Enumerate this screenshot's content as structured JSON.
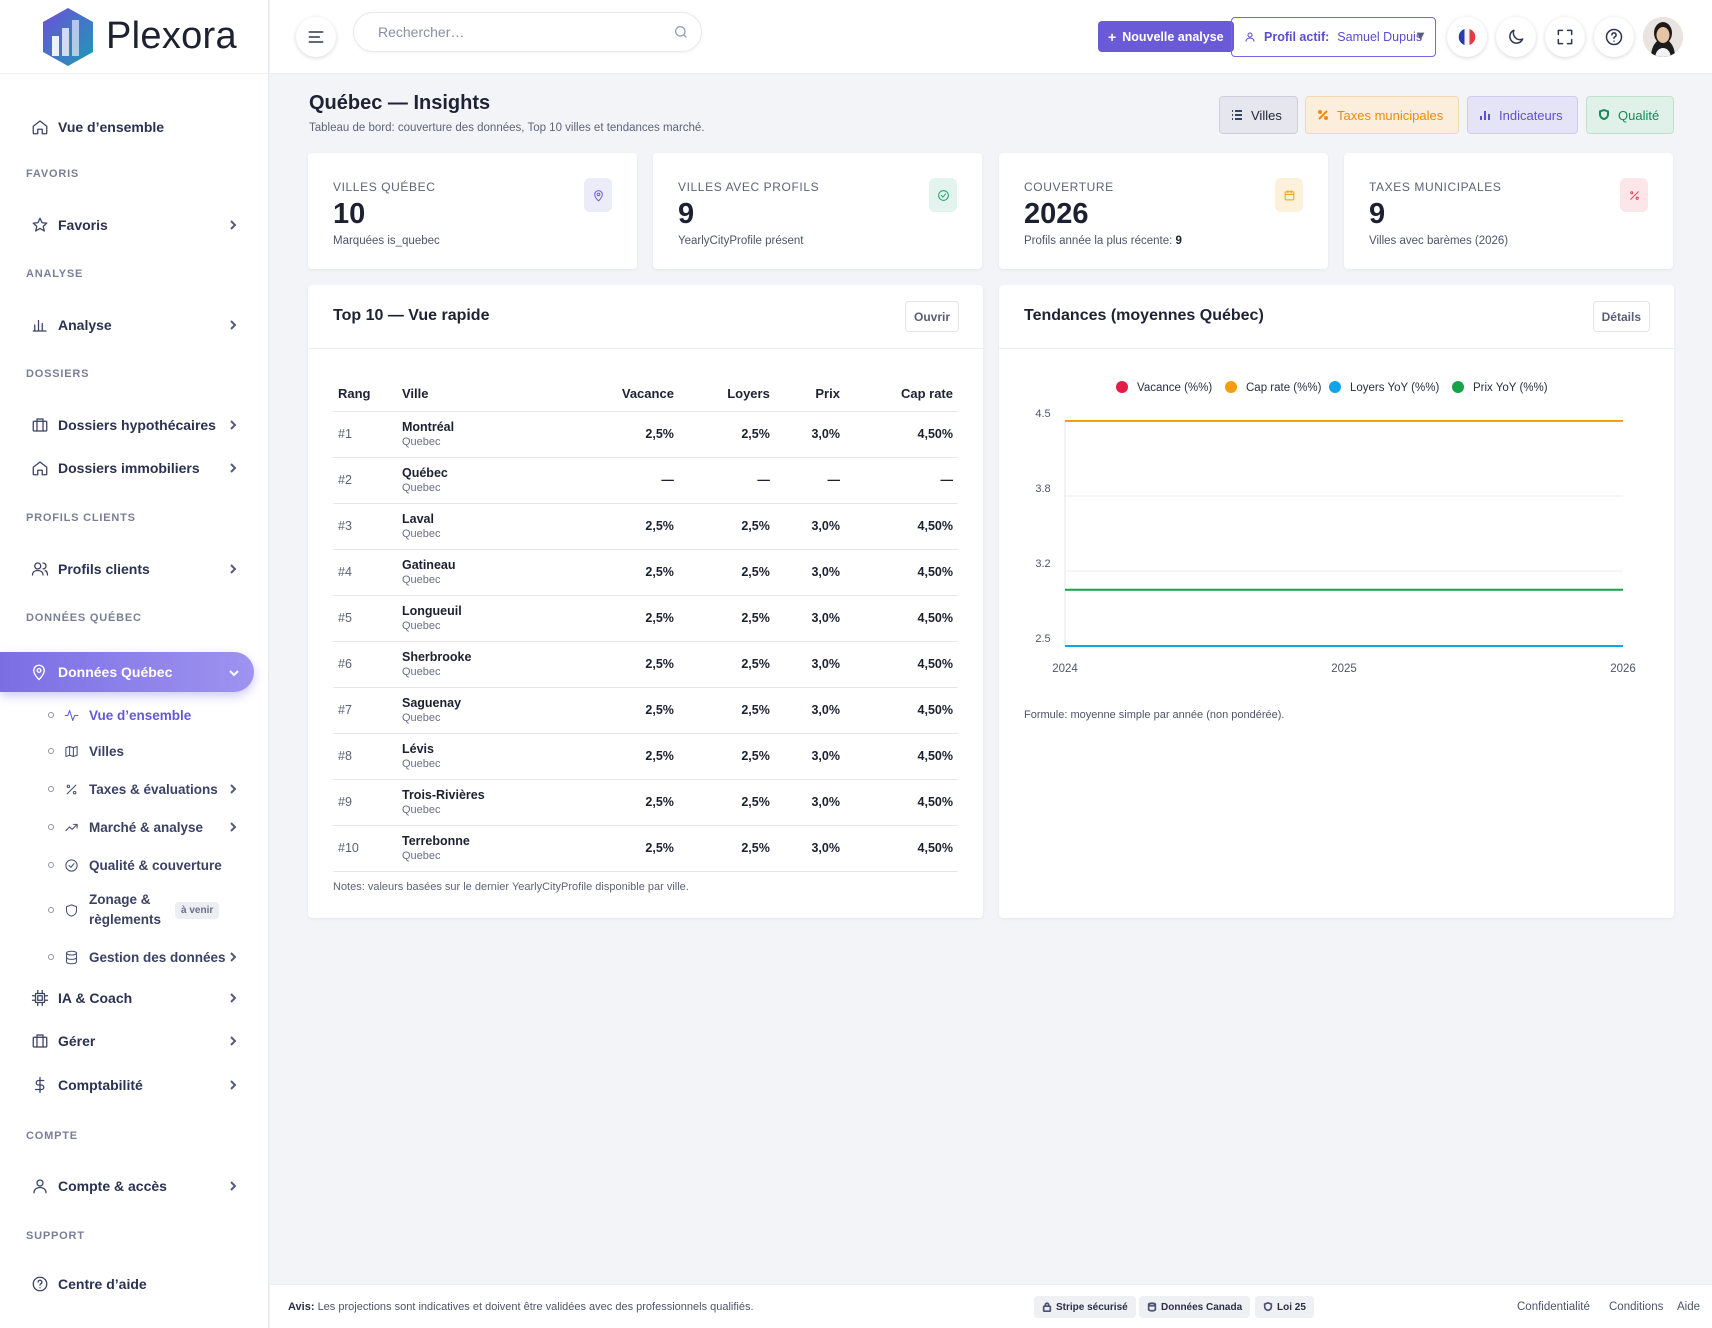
{
  "brand": {
    "name": "Plexora"
  },
  "sidebar": {
    "overview": "Vue d’ensemble",
    "sections": {
      "favoris": "FAVORIS",
      "analyse": "ANALYSE",
      "dossiers": "DOSSIERS",
      "profils": "PROFILS CLIENTS",
      "donnees": "DONNÉES QUÉBEC",
      "compte": "COMPTE",
      "support": "SUPPORT"
    },
    "items": {
      "favoris": "Favoris",
      "analyse": "Analyse",
      "dossiers_hypo": "Dossiers hypothécaires",
      "dossiers_immo": "Dossiers immobiliers",
      "profils": "Profils clients",
      "donnees_quebec": "Données Québec",
      "ia_coach": "IA & Coach",
      "gerer": "Gérer",
      "comptabilite": "Comptabilité",
      "compte": "Compte & accès",
      "aide": "Centre d’aide"
    },
    "sub": {
      "vue": "Vue d’ensemble",
      "villes": "Villes",
      "taxes": "Taxes & évaluations",
      "marche": "Marché & analyse",
      "qualite": "Qualité & couverture",
      "zonage_1": "Zonage &",
      "zonage_2": "règlements",
      "zonage_badge": "à venir",
      "gestion": "Gestion des données"
    }
  },
  "topbar": {
    "search_placeholder": "Rechercher…",
    "new_analysis": "Nouvelle analyse",
    "profile_label": "Profil actif:",
    "profile_value": "Samuel Dupuis"
  },
  "page": {
    "title": "Québec — Insights",
    "subtitle": "Tableau de bord: couverture des données, Top 10 villes et tendances marché.",
    "tags": {
      "villes": "Villes",
      "taxes": "Taxes municipales",
      "indicateurs": "Indicateurs",
      "qualite": "Qualité"
    }
  },
  "kpis": [
    {
      "label": "VILLES QUÉBEC",
      "value": "10",
      "sub": "Marquées is_quebec"
    },
    {
      "label": "VILLES AVEC PROFILS",
      "value": "9",
      "sub": "YearlyCityProfile présent"
    },
    {
      "label": "COUVERTURE",
      "value": "2026",
      "sub": "Profils année la plus récente:",
      "sub_strong": "9"
    },
    {
      "label": "TAXES MUNICIPALES",
      "value": "9",
      "sub": "Villes avec barèmes (2026)"
    }
  ],
  "top10": {
    "title": "Top 10 — Vue rapide",
    "button": "Ouvrir",
    "columns": [
      "Rang",
      "Ville",
      "Vacance",
      "Loyers",
      "Prix",
      "Cap rate"
    ],
    "rows": [
      {
        "rank": "#1",
        "city": "Montréal",
        "province": "Quebec",
        "vacance": "2,5%",
        "loyers": "2,5%",
        "prix": "3,0%",
        "cap": "4,50%"
      },
      {
        "rank": "#2",
        "city": "Québec",
        "province": "Quebec",
        "vacance": "—",
        "loyers": "—",
        "prix": "—",
        "cap": "—"
      },
      {
        "rank": "#3",
        "city": "Laval",
        "province": "Quebec",
        "vacance": "2,5%",
        "loyers": "2,5%",
        "prix": "3,0%",
        "cap": "4,50%"
      },
      {
        "rank": "#4",
        "city": "Gatineau",
        "province": "Quebec",
        "vacance": "2,5%",
        "loyers": "2,5%",
        "prix": "3,0%",
        "cap": "4,50%"
      },
      {
        "rank": "#5",
        "city": "Longueuil",
        "province": "Quebec",
        "vacance": "2,5%",
        "loyers": "2,5%",
        "prix": "3,0%",
        "cap": "4,50%"
      },
      {
        "rank": "#6",
        "city": "Sherbrooke",
        "province": "Quebec",
        "vacance": "2,5%",
        "loyers": "2,5%",
        "prix": "3,0%",
        "cap": "4,50%"
      },
      {
        "rank": "#7",
        "city": "Saguenay",
        "province": "Quebec",
        "vacance": "2,5%",
        "loyers": "2,5%",
        "prix": "3,0%",
        "cap": "4,50%"
      },
      {
        "rank": "#8",
        "city": "Lévis",
        "province": "Quebec",
        "vacance": "2,5%",
        "loyers": "2,5%",
        "prix": "3,0%",
        "cap": "4,50%"
      },
      {
        "rank": "#9",
        "city": "Trois-Rivières",
        "province": "Quebec",
        "vacance": "2,5%",
        "loyers": "2,5%",
        "prix": "3,0%",
        "cap": "4,50%"
      },
      {
        "rank": "#10",
        "city": "Terrebonne",
        "province": "Quebec",
        "vacance": "2,5%",
        "loyers": "2,5%",
        "prix": "3,0%",
        "cap": "4,50%"
      }
    ],
    "note": "Notes: valeurs basées sur le dernier YearlyCityProfile disponible par ville."
  },
  "trends": {
    "title": "Tendances (moyennes Québec)",
    "button": "Détails",
    "formula": "Formule: moyenne simple par année (non pondérée)."
  },
  "chart_data": {
    "type": "line",
    "x": [
      2024,
      2025,
      2026
    ],
    "x_ticks": [
      "2024",
      "2025",
      "2026"
    ],
    "y_ticks": [
      "4.5",
      "3.8",
      "3.2",
      "2.5"
    ],
    "ylim": [
      2.5,
      4.5
    ],
    "legend_position": "top",
    "series": [
      {
        "name": "Vacance (%%)",
        "color": "#e11d48",
        "values": [
          2.5,
          2.5,
          2.5
        ]
      },
      {
        "name": "Cap rate (%%)",
        "color": "#f59e0b",
        "values": [
          4.5,
          4.5,
          4.5
        ]
      },
      {
        "name": "Loyers YoY (%%)",
        "color": "#0ea5e9",
        "values": [
          2.5,
          2.5,
          2.5
        ]
      },
      {
        "name": "Prix YoY (%%)",
        "color": "#16a34a",
        "values": [
          3.0,
          3.0,
          3.0
        ]
      }
    ]
  },
  "footer": {
    "avis_label": "Avis:",
    "avis_text": "Les projections sont indicatives et doivent être validées avec des professionnels qualifiés.",
    "badges": [
      "Stripe sécurisé",
      "Données Canada",
      "Loi 25"
    ],
    "links": [
      "Confidentialité",
      "Conditions",
      "Aide"
    ]
  }
}
